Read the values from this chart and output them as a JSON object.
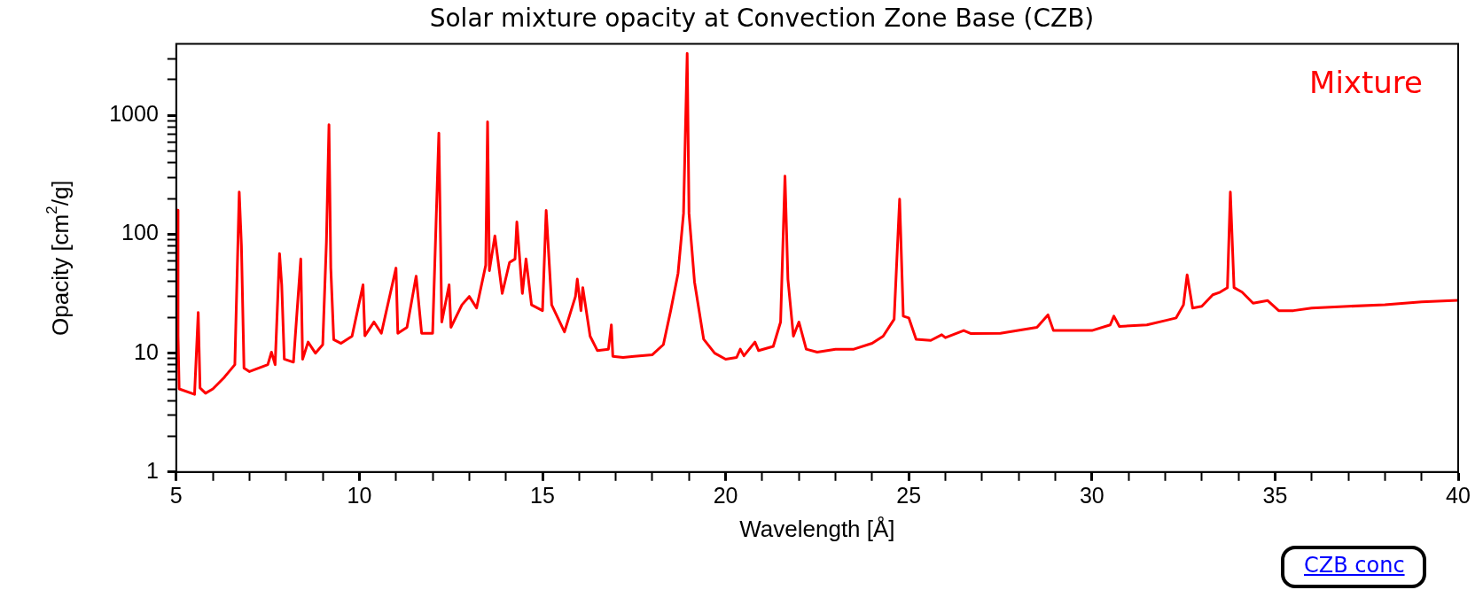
{
  "chart_data": {
    "type": "line",
    "title": "Solar mixture opacity at Convection Zone Base (CZB)",
    "xlabel": "Wavelength [Å]",
    "ylabel": "Opacity [cm$^{2}$/g]",
    "log": "y",
    "grid": false,
    "legend": false,
    "marker": "none",
    "line_style": "solid",
    "xlim": [
      5,
      40
    ],
    "ylim": [
      1,
      4000
    ],
    "xticks": [
      5,
      {
        "value": 6,
        "label": null
      },
      {
        "value": 7,
        "label": null
      },
      {
        "value": 8,
        "label": null
      },
      {
        "value": 9,
        "label": null
      },
      10,
      {
        "value": 11,
        "label": null
      },
      {
        "value": 12,
        "label": null
      },
      {
        "value": 13,
        "label": null
      },
      {
        "value": 14,
        "label": null
      },
      15,
      {
        "value": 16,
        "label": null
      },
      {
        "value": 17,
        "label": null
      },
      {
        "value": 18,
        "label": null
      },
      {
        "value": 19,
        "label": null
      },
      20,
      {
        "value": 21,
        "label": null
      },
      {
        "value": 22,
        "label": null
      },
      {
        "value": 23,
        "label": null
      },
      {
        "value": 24,
        "label": null
      },
      25,
      {
        "value": 26,
        "label": null
      },
      {
        "value": 27,
        "label": null
      },
      {
        "value": 28,
        "label": null
      },
      {
        "value": 29,
        "label": null
      },
      30,
      {
        "value": 31,
        "label": null
      },
      {
        "value": 32,
        "label": null
      },
      {
        "value": 33,
        "label": null
      },
      {
        "value": 34,
        "label": null
      },
      35,
      {
        "value": 36,
        "label": null
      },
      {
        "value": 37,
        "label": null
      },
      {
        "value": 38,
        "label": null
      },
      {
        "value": 39,
        "label": null
      },
      40
    ],
    "yticks": [
      1,
      {
        "value": 2,
        "label": null
      },
      {
        "value": 3,
        "label": null
      },
      {
        "value": 4,
        "label": null
      },
      {
        "value": 5,
        "label": null
      },
      {
        "value": 6,
        "label": null
      },
      {
        "value": 7,
        "label": null
      },
      {
        "value": 8,
        "label": null
      },
      {
        "value": 9,
        "label": null
      },
      10,
      {
        "value": 20,
        "label": null
      },
      {
        "value": 30,
        "label": null
      },
      {
        "value": 40,
        "label": null
      },
      {
        "value": 50,
        "label": null
      },
      {
        "value": 60,
        "label": null
      },
      {
        "value": 70,
        "label": null
      },
      {
        "value": 80,
        "label": null
      },
      {
        "value": 90,
        "label": null
      },
      100,
      {
        "value": 200,
        "label": null
      },
      {
        "value": 300,
        "label": null
      },
      {
        "value": 400,
        "label": null
      },
      {
        "value": 500,
        "label": null
      },
      {
        "value": 600,
        "label": null
      },
      {
        "value": 700,
        "label": null
      },
      {
        "value": 800,
        "label": null
      },
      {
        "value": 900,
        "label": null
      },
      1000,
      {
        "value": 2000,
        "label": null
      },
      {
        "value": 3000,
        "label": null
      }
    ],
    "annotations": [
      "CZB conc"
    ],
    "series": [
      {
        "name": "Mixture",
        "color": "#ff0000",
        "x": [
          5.03,
          5.05,
          5.08,
          5.5,
          5.6,
          5.65,
          5.8,
          6.0,
          6.3,
          6.6,
          6.72,
          6.78,
          6.85,
          7.0,
          7.5,
          7.6,
          7.7,
          7.82,
          7.88,
          7.95,
          8.2,
          8.4,
          8.45,
          8.6,
          8.8,
          9.0,
          9.1,
          9.17,
          9.22,
          9.3,
          9.5,
          9.8,
          10.1,
          10.15,
          10.4,
          10.6,
          11.0,
          11.05,
          11.3,
          11.55,
          11.7,
          12.0,
          12.17,
          12.25,
          12.45,
          12.5,
          12.8,
          13.0,
          13.2,
          13.45,
          13.5,
          13.55,
          13.7,
          13.9,
          14.1,
          14.25,
          14.3,
          14.45,
          14.55,
          14.7,
          15.0,
          15.1,
          15.25,
          15.6,
          15.9,
          15.95,
          16.05,
          16.1,
          16.3,
          16.5,
          16.8,
          16.88,
          16.92,
          17.2,
          17.5,
          18.0,
          18.3,
          18.5,
          18.7,
          18.85,
          18.95,
          19.0,
          19.15,
          19.4,
          19.7,
          20.0,
          20.3,
          20.4,
          20.5,
          20.8,
          20.9,
          21.3,
          21.5,
          21.62,
          21.7,
          21.85,
          22.0,
          22.2,
          22.5,
          23.0,
          23.5,
          24.0,
          24.3,
          24.6,
          24.75,
          24.85,
          25.0,
          25.2,
          25.6,
          25.9,
          26.0,
          26.5,
          26.7,
          27.5,
          28.5,
          28.8,
          28.95,
          29.5,
          30.0,
          30.5,
          30.6,
          30.75,
          31.5,
          32.0,
          32.3,
          32.5,
          32.6,
          32.75,
          33.0,
          33.3,
          33.5,
          33.7,
          33.78,
          33.88,
          34.1,
          34.4,
          34.8,
          35.1,
          35.5,
          36.0,
          37.0,
          38.0,
          39.0,
          40.0
        ],
        "values": [
          160,
          14,
          5.0,
          4.5,
          22,
          5.1,
          4.6,
          5.0,
          6.2,
          8.0,
          227,
          80,
          7.5,
          7.0,
          8.0,
          10.2,
          8.0,
          69,
          37.6,
          8.9,
          8.4,
          62,
          8.9,
          12.4,
          10,
          11.8,
          86,
          835,
          52,
          13,
          12.1,
          13.9,
          37.6,
          14,
          18.3,
          14.7,
          52,
          14.7,
          16.5,
          44.5,
          14.7,
          14.7,
          710,
          18.3,
          37.6,
          16.5,
          25.5,
          30,
          24,
          55,
          883,
          49.5,
          97,
          31.8,
          58,
          62,
          127,
          31.8,
          62,
          25.5,
          22.8,
          159,
          25.5,
          15.1,
          30,
          42,
          22.8,
          35.6,
          13.9,
          10.5,
          10.8,
          17.3,
          9.4,
          9.2,
          9.4,
          9.7,
          11.8,
          22.8,
          46.8,
          150,
          3330,
          150,
          39.8,
          13.1,
          10,
          8.9,
          9.2,
          10.8,
          9.5,
          12.4,
          10.5,
          11.4,
          18.3,
          309,
          42,
          13.9,
          18.3,
          10.8,
          10.2,
          10.8,
          10.8,
          12.1,
          13.9,
          19.3,
          198,
          20.5,
          19.8,
          13.1,
          12.8,
          14.3,
          13.5,
          15.5,
          14.6,
          14.7,
          16.5,
          21,
          15.5,
          15.5,
          15.5,
          17.3,
          20.5,
          16.8,
          17.3,
          18.8,
          19.8,
          25.5,
          45.6,
          24,
          24.8,
          31,
          32.6,
          35.6,
          227,
          35.6,
          32.6,
          26.3,
          27.7,
          22.8,
          22.8,
          24,
          24.8,
          25.5,
          27,
          27.8
        ]
      }
    ]
  }
}
